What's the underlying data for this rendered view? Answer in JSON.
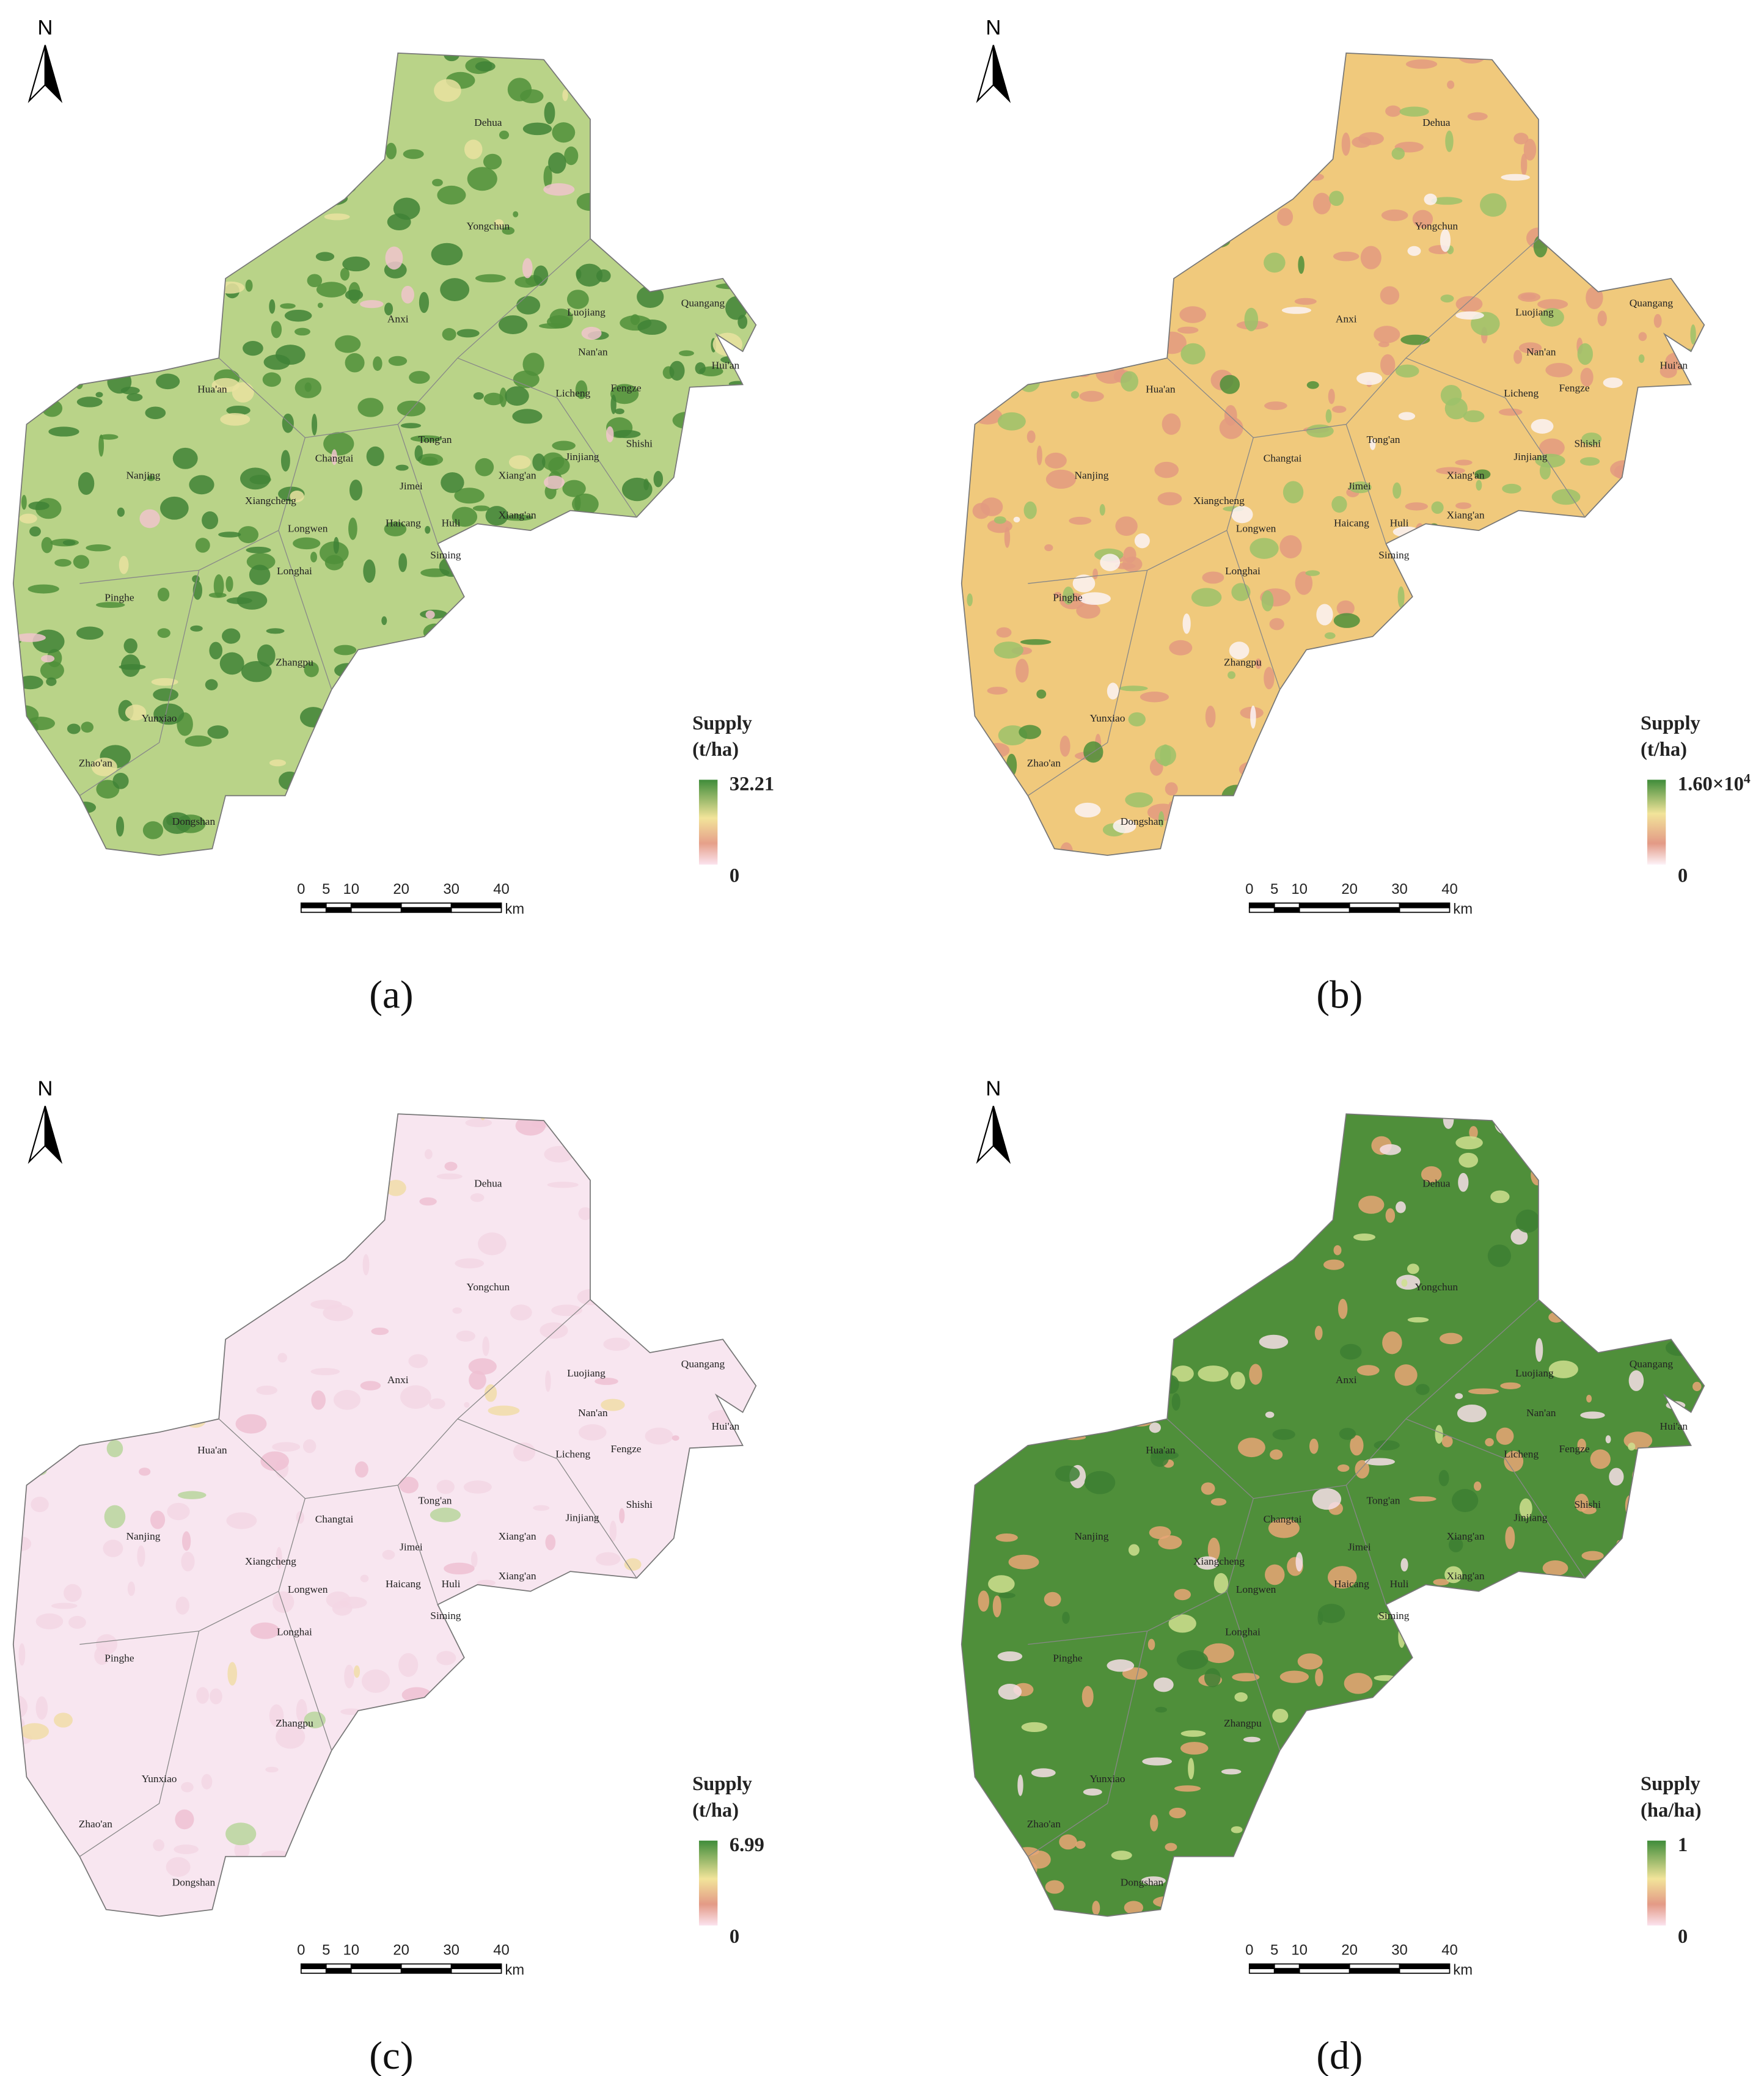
{
  "north": "N",
  "places": [
    "Dehua",
    "Yongchun",
    "Anxi",
    "Luojiang",
    "Quangang",
    "Nan'an",
    "Hui'an",
    "Hua'an",
    "Fengze",
    "Licheng",
    "Tong'an",
    "Jinjiang",
    "Shishi",
    "Changtai",
    "Nanjing",
    "Xiang'an",
    "Xiangcheng",
    "Jimei",
    "Xiang'an",
    "Longwen",
    "Haicang",
    "Huli",
    "Siming",
    "Longhai",
    "Pinghe",
    "Zhangpu",
    "Yunxiao",
    "Zhao'an",
    "Dongshan"
  ],
  "scale_bar": {
    "ticks": [
      0,
      5,
      10,
      20,
      30,
      40
    ],
    "unit": "km"
  },
  "panels": [
    {
      "label": "(a)",
      "legend_title": "Supply",
      "legend_unit": "(t/ha)",
      "legend_max": "32.21",
      "legend_min": "0"
    },
    {
      "label": "(b)",
      "legend_title": "Supply",
      "legend_unit": "(t/ha)",
      "legend_max": "1.60×10",
      "legend_max_exp": "4",
      "legend_min": "0"
    },
    {
      "label": "(c)",
      "legend_title": "Supply",
      "legend_unit": "(t/ha)",
      "legend_max": "6.99",
      "legend_min": "0"
    },
    {
      "label": "(d)",
      "legend_title": "Supply",
      "legend_unit": "(ha/ha)",
      "legend_max": "1",
      "legend_min": "0"
    }
  ]
}
